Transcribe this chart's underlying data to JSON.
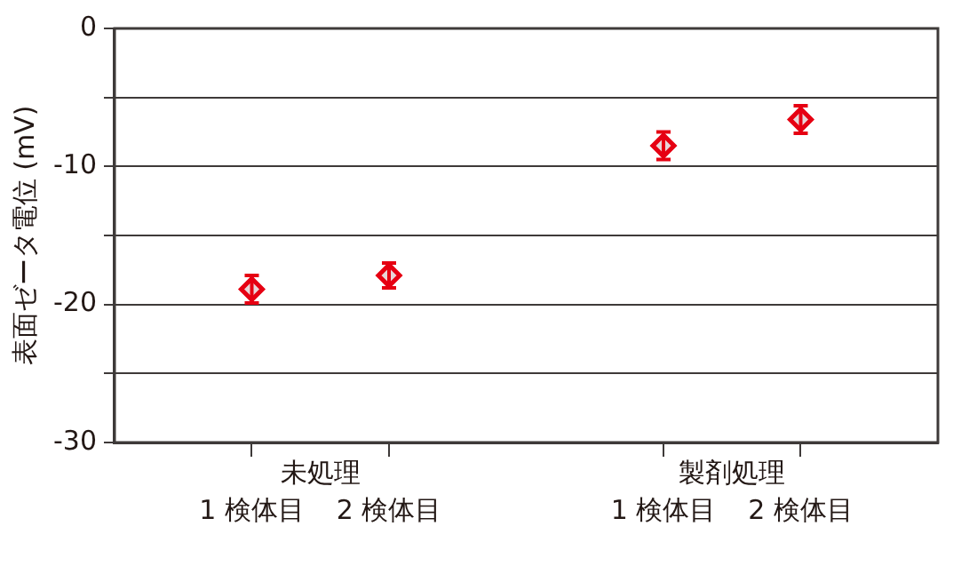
{
  "chart_data": {
    "type": "scatter",
    "ylabel": "表面ゼータ電位 (mV)",
    "categories": [
      null,
      "1 検体目",
      "2 検体目",
      null,
      "1 検体目",
      "2 検体目",
      null
    ],
    "series": [
      {
        "color": "#e60012",
        "values": [
          null,
          -18.9,
          -17.9,
          null,
          -8.5,
          -6.6,
          null
        ],
        "errors": [
          null,
          1.0,
          0.9,
          null,
          1.0,
          1.0,
          null
        ]
      }
    ],
    "ylim": [
      -30,
      0
    ],
    "yticks": [
      -30,
      {
        "value": -25,
        "label": null
      },
      -20,
      {
        "value": -15,
        "label": null
      },
      -10,
      {
        "value": -5,
        "label": null
      },
      0
    ],
    "annotations": [
      "未処理",
      "製剤処理"
    ],
    "grid": "y",
    "marker": "diamond",
    "legend": false
  }
}
